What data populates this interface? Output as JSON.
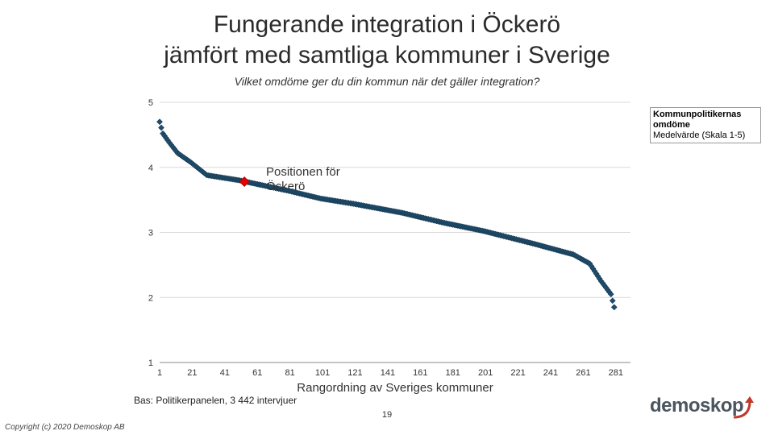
{
  "header": {
    "title_line1": "Fungerande integration i Öckerö",
    "title_line2": "jämfört med samtliga kommuner i Sverige",
    "subtitle": "Vilket omdöme ger du din kommun när det gäller integration?"
  },
  "legend": {
    "title": "Kommunpolitikernas omdöme",
    "subtitle": "Medelvärde (Skala 1-5)"
  },
  "annotation": "Positionen för Öckerö",
  "footer": {
    "note": "Bas: Politikerpanelen, 3 442 intervjuer",
    "page_number": "19",
    "copyright": "Copyright (c) 2020 Demoskop AB",
    "logo": "demoskop"
  },
  "colors": {
    "series": "#1f4e6e",
    "highlight": "#e60000",
    "grid": "#d9d9d9",
    "logo_arrow": "#c0392b"
  },
  "chart_data": {
    "type": "scatter",
    "xlabel": "Rangordning av Sveriges kommuner",
    "ylabel": "",
    "xlim": [
      1,
      290
    ],
    "ylim": [
      1,
      5
    ],
    "yticks": [
      1,
      2,
      3,
      4,
      5
    ],
    "xticks": [
      1,
      21,
      41,
      61,
      81,
      101,
      121,
      141,
      161,
      181,
      201,
      221,
      241,
      261,
      281
    ],
    "curve_keypoints": [
      [
        1,
        4.7
      ],
      [
        3,
        4.52
      ],
      [
        7,
        4.38
      ],
      [
        12,
        4.22
      ],
      [
        20,
        4.08
      ],
      [
        30,
        3.88
      ],
      [
        50,
        3.8
      ],
      [
        80,
        3.64
      ],
      [
        100,
        3.52
      ],
      [
        120,
        3.44
      ],
      [
        150,
        3.3
      ],
      [
        175,
        3.15
      ],
      [
        200,
        3.02
      ],
      [
        230,
        2.83
      ],
      [
        255,
        2.66
      ],
      [
        265,
        2.52
      ],
      [
        272,
        2.25
      ],
      [
        278,
        2.05
      ],
      [
        280,
        1.85
      ]
    ],
    "num_points": 280,
    "highlight": {
      "name": "Öckerö",
      "x": 53,
      "y": 3.78
    }
  }
}
